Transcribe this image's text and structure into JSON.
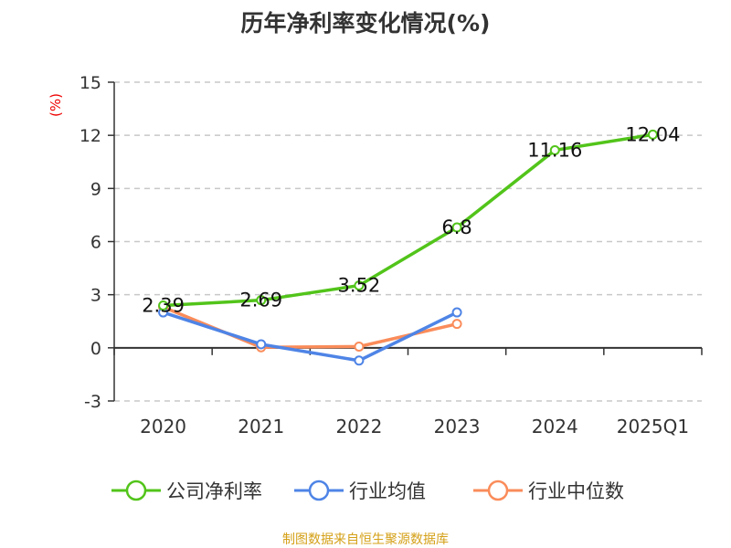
{
  "chart_data": {
    "type": "line",
    "title": "历年净利率变化情况(%)",
    "ylabel": "(%)",
    "categories": [
      "2020",
      "2021",
      "2022",
      "2023",
      "2024",
      "2025Q1"
    ],
    "ylim": [
      -3,
      15
    ],
    "yticks": [
      -3,
      0,
      3,
      6,
      9,
      12,
      15
    ],
    "grid": "horizontal-dashed",
    "legend_position": "bottom",
    "series": [
      {
        "name": "公司净利率",
        "color": "#52c41a",
        "values": [
          2.39,
          2.69,
          3.52,
          6.8,
          11.16,
          12.04
        ],
        "labels": [
          "2.39",
          "2.69",
          "3.52",
          "6.8",
          "11.16",
          "12.04"
        ]
      },
      {
        "name": "行业均值",
        "color": "#4e84e6",
        "values": [
          2.0,
          0.2,
          -0.72,
          2.0,
          null,
          null
        ]
      },
      {
        "name": "行业中位数",
        "color": "#fa8c5a",
        "values": [
          2.3,
          0.03,
          0.07,
          1.35,
          null,
          null
        ]
      }
    ]
  },
  "source": "制图数据来自恒生聚源数据库"
}
